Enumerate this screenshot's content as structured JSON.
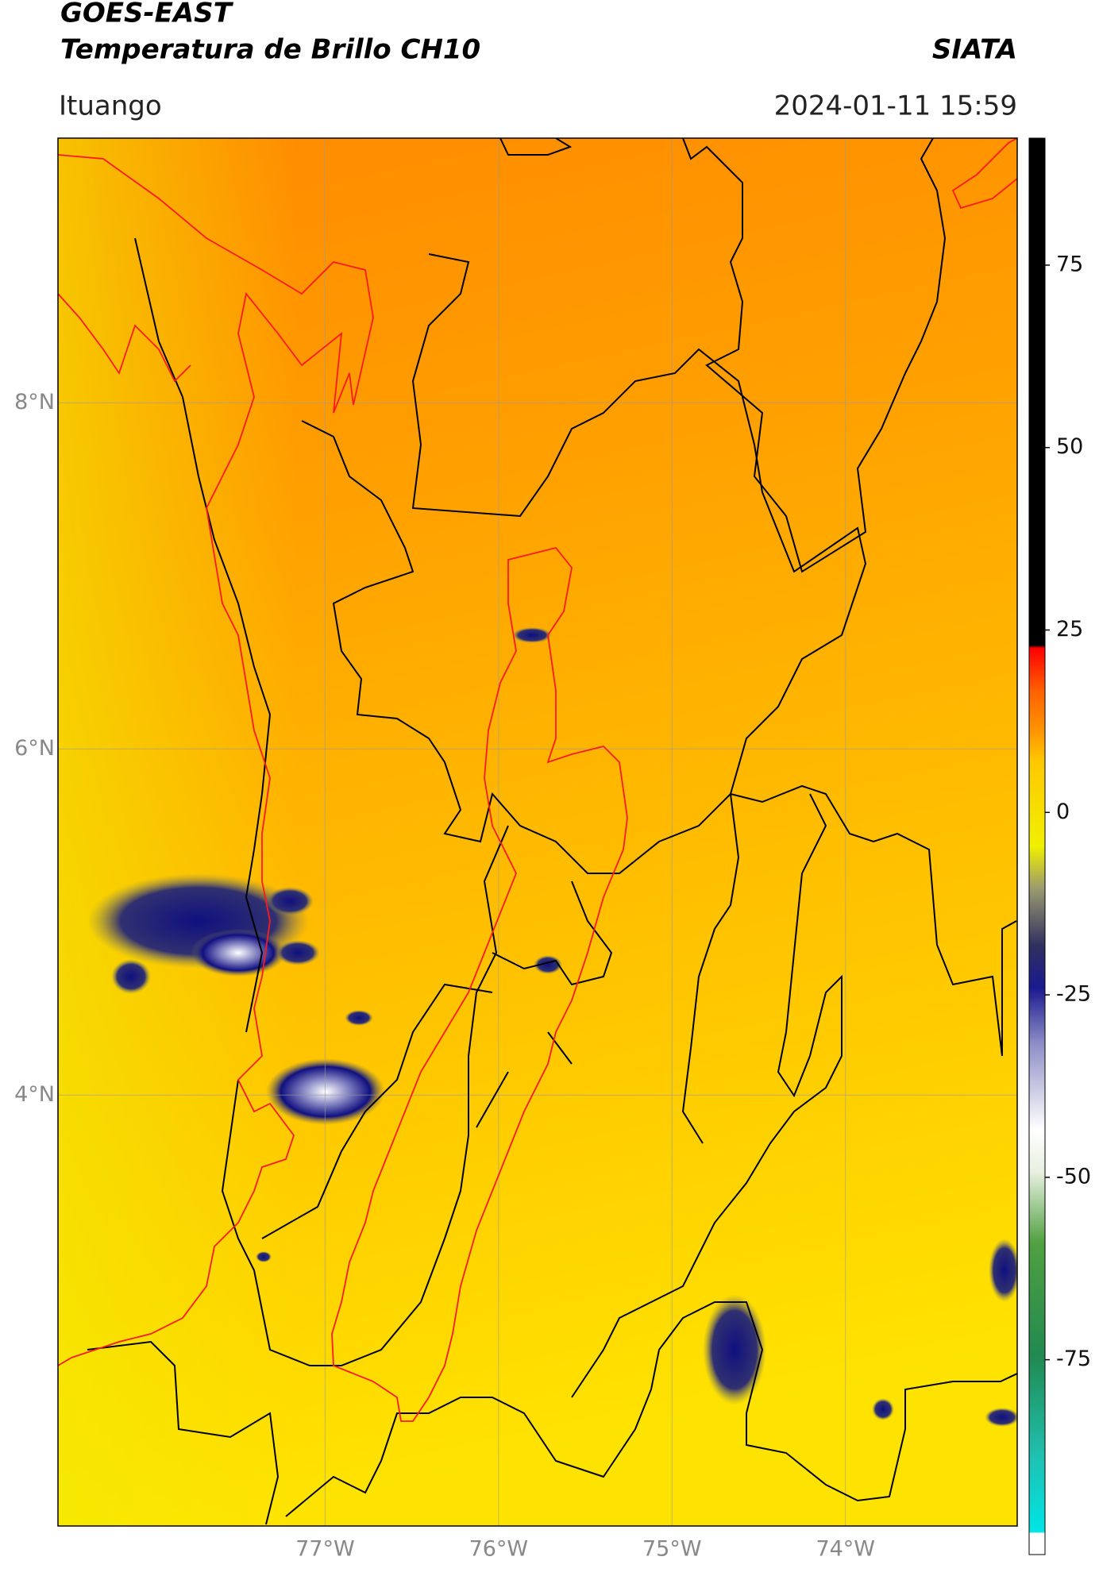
{
  "header": {
    "title": "GOES-EAST",
    "subtitle": "Temperatura de Brillo CH10",
    "source": "SIATA",
    "location": "Ituango",
    "datetime": "2024-01-11 15:59"
  },
  "chart_data": {
    "type": "map",
    "xlim": [
      -78.54,
      -73.01
    ],
    "ylim": [
      1.51,
      9.53
    ],
    "xticks": [
      {
        "value": -77,
        "label": "77°W"
      },
      {
        "value": -76,
        "label": "76°W"
      },
      {
        "value": -75,
        "label": "75°W"
      },
      {
        "value": -74,
        "label": "74°W"
      }
    ],
    "yticks": [
      {
        "value": 4,
        "label": "4°N"
      },
      {
        "value": 6,
        "label": "6°N"
      },
      {
        "value": 8,
        "label": "8°N"
      }
    ],
    "grid": true,
    "colorbar": {
      "lim": [
        -101.7,
        92.4
      ],
      "ticks": [
        -75,
        -50,
        -25,
        0,
        25,
        50,
        75
      ]
    }
  }
}
